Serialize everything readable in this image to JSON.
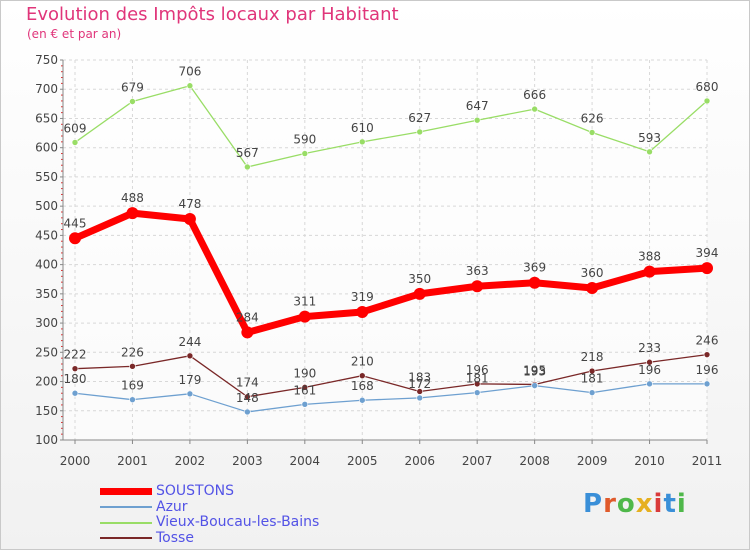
{
  "header": {
    "title": "Evolution des Impôts locaux par Habitant",
    "subtitle": "(en € et par an)"
  },
  "logo": {
    "text": "Proxiti",
    "letter_colors": [
      "#3a8fd8",
      "#e05a2b",
      "#4fb84a",
      "#e6b020",
      "#d93a3a",
      "#3a8fd8",
      "#4fb84a"
    ]
  },
  "chart_data": {
    "type": "line",
    "categories": [
      "2000",
      "2001",
      "2002",
      "2003",
      "2004",
      "2005",
      "2006",
      "2007",
      "2008",
      "2009",
      "2010",
      "2011"
    ],
    "ylim": [
      100,
      750
    ],
    "yticks": [
      100,
      150,
      200,
      250,
      300,
      350,
      400,
      450,
      500,
      550,
      600,
      650,
      700,
      750
    ],
    "grid": true,
    "legend_position": "bottom-left",
    "series": [
      {
        "name": "SOUSTONS",
        "color": "#ff0000",
        "values": [
          445,
          488,
          478,
          284,
          311,
          319,
          350,
          363,
          369,
          360,
          388,
          394
        ],
        "labels": [
          "445",
          "488",
          "478",
          "284",
          "311",
          "319",
          "350",
          "363",
          "369",
          "360",
          "388",
          "394"
        ],
        "thick": true
      },
      {
        "name": "Azur",
        "color": "#6ea0d0",
        "values": [
          180,
          169,
          179,
          148,
          161,
          168,
          172,
          181,
          193,
          181,
          196,
          196
        ],
        "labels": [
          "180",
          "169",
          "179",
          "148",
          "161",
          "168",
          "172",
          "181",
          "193",
          "181",
          "196",
          "196"
        ]
      },
      {
        "name": "Vieux-Boucau-les-Bains",
        "color": "#99dd66",
        "values": [
          609,
          679,
          706,
          567,
          590,
          610,
          627,
          647,
          666,
          626,
          593,
          680
        ],
        "labels": [
          "609",
          "679",
          "706",
          "567",
          "590",
          "610",
          "627",
          "647",
          "666",
          "626",
          "593",
          "680"
        ]
      },
      {
        "name": "Tosse",
        "color": "#7a2828",
        "values": [
          222,
          226,
          244,
          174,
          190,
          210,
          183,
          196,
          195,
          218,
          233,
          246
        ],
        "labels": [
          "222",
          "226",
          "244",
          "174",
          "190",
          "210",
          "183",
          "196",
          "195",
          "218",
          "233",
          "246"
        ]
      }
    ]
  }
}
